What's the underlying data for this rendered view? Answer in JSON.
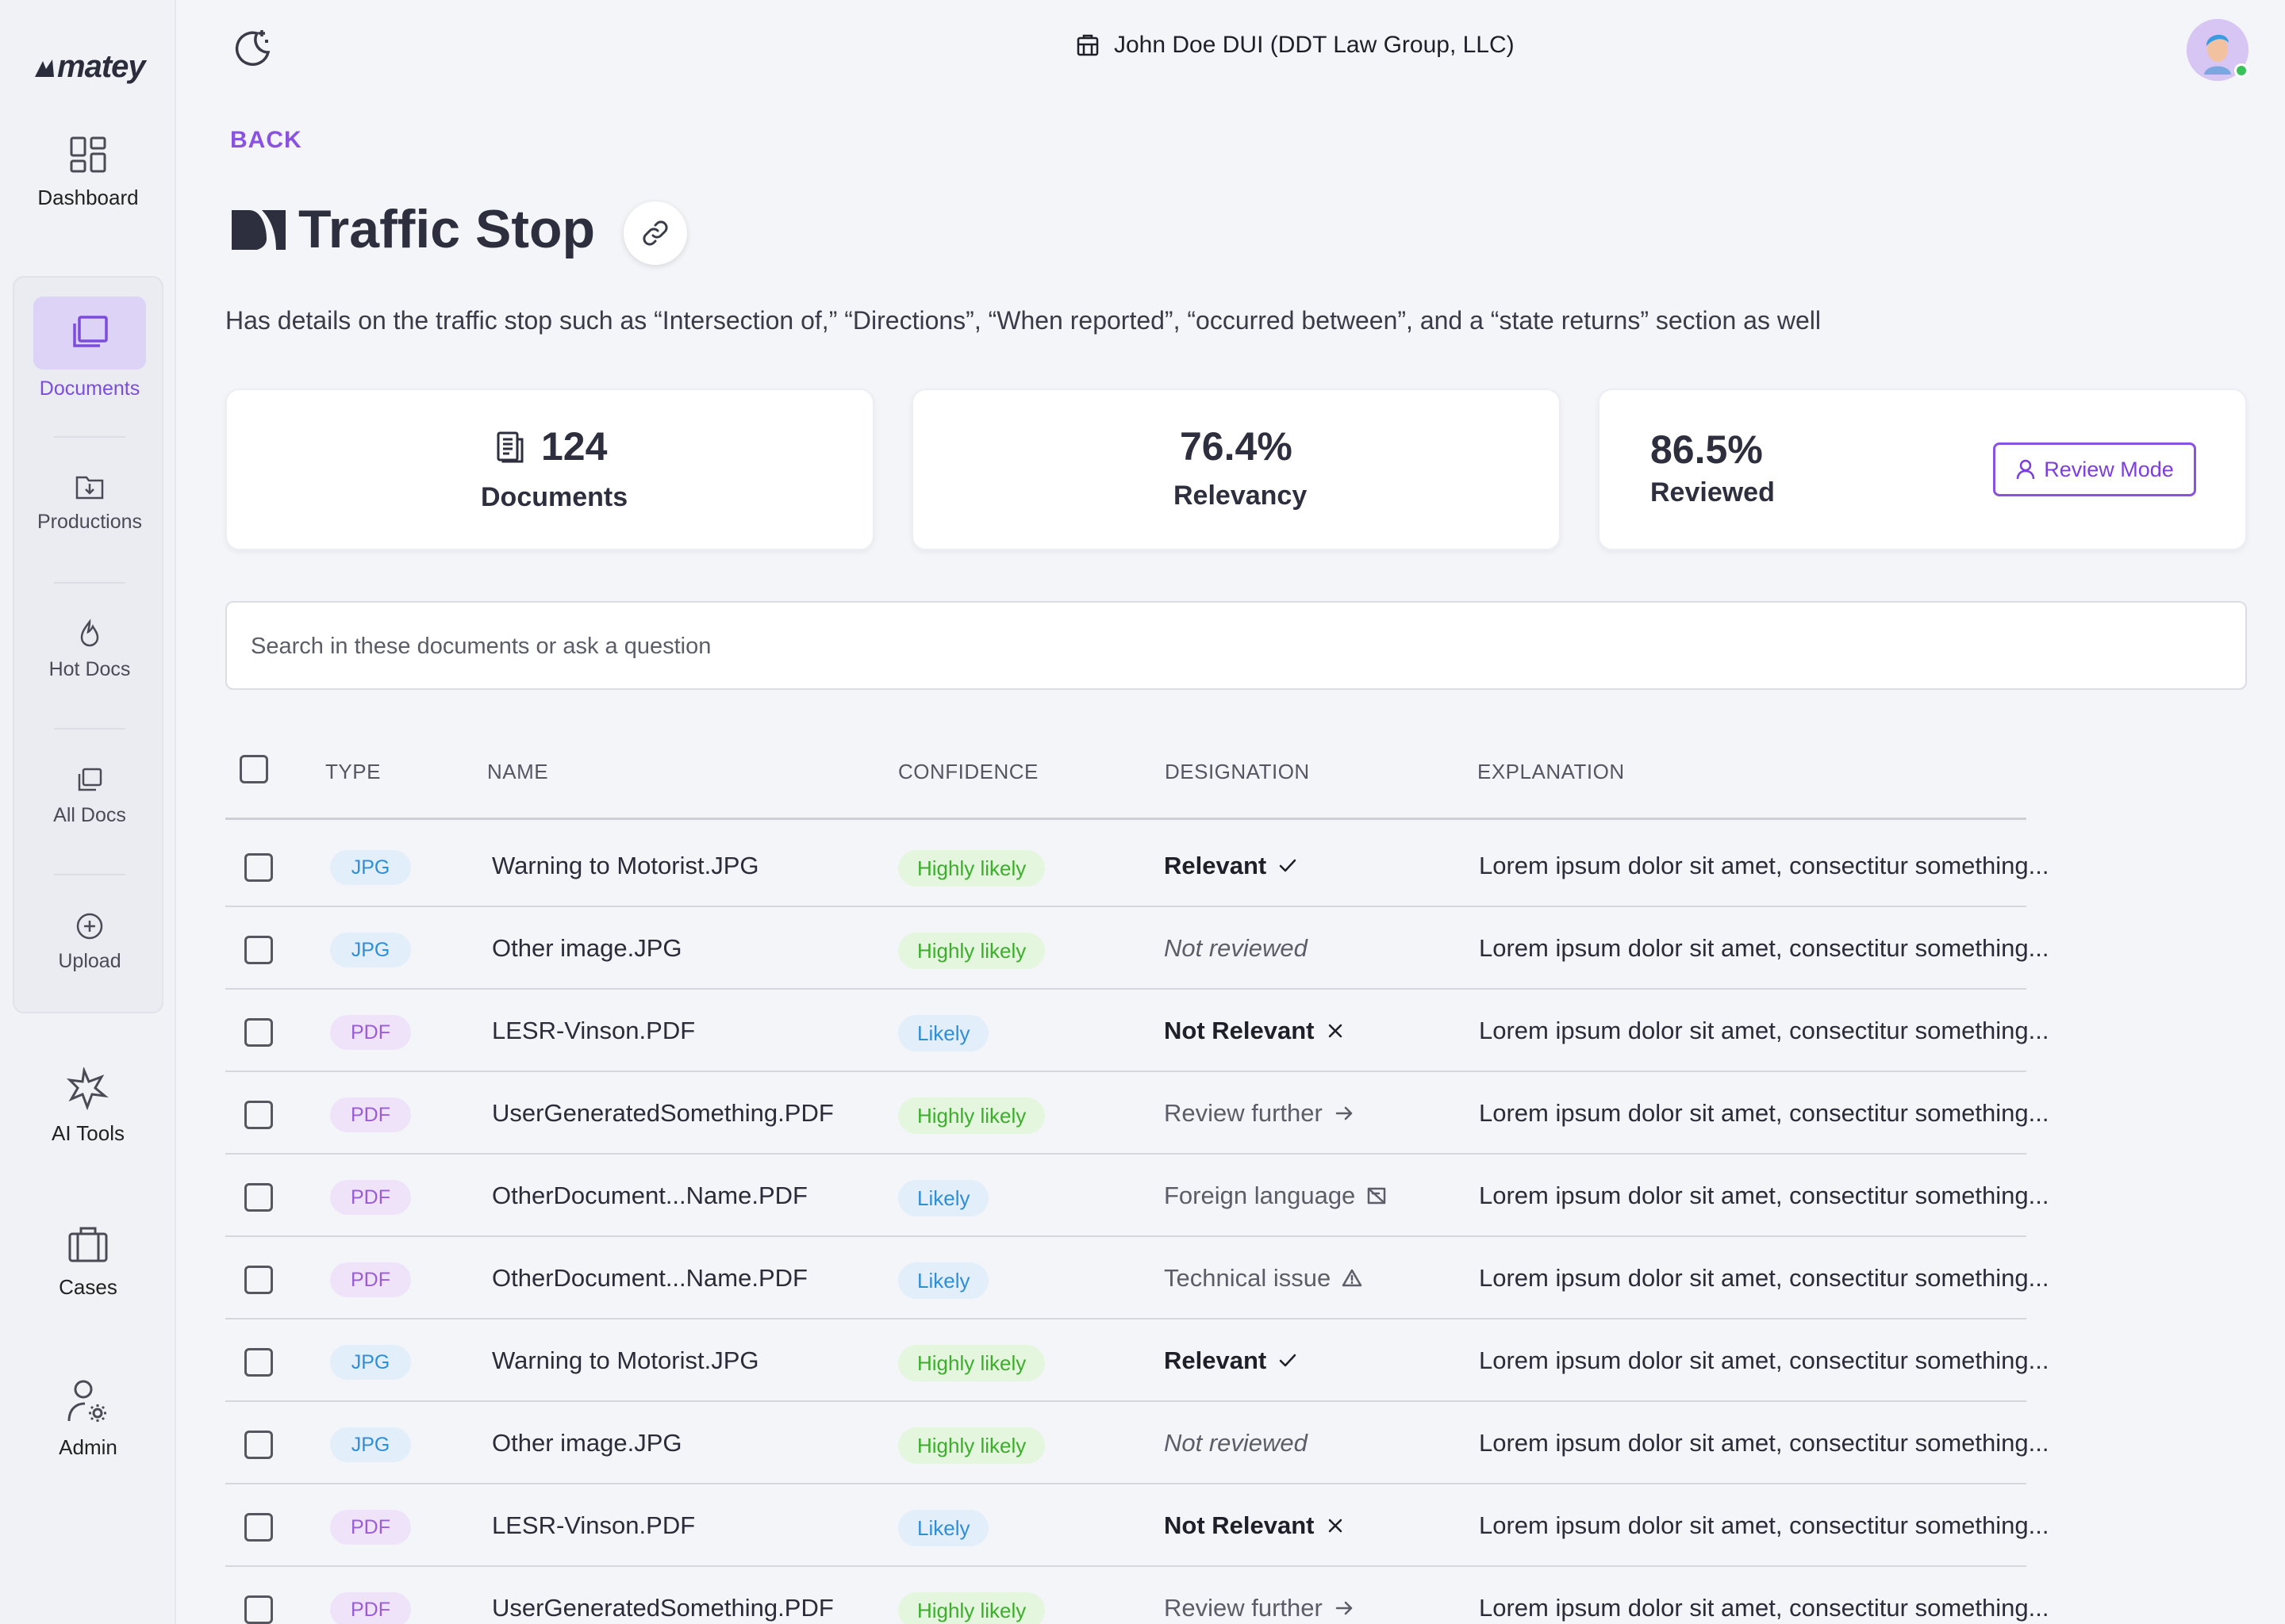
{
  "app": {
    "logo_text": "matey"
  },
  "sidebar": {
    "items": [
      {
        "label": "Dashboard",
        "icon": "dashboard-icon"
      },
      {
        "label": "Documents",
        "icon": "documents-icon"
      },
      {
        "label": "Productions",
        "icon": "productions-icon"
      },
      {
        "label": "Hot Docs",
        "icon": "flame-icon"
      },
      {
        "label": "All Docs",
        "icon": "all-docs-icon"
      },
      {
        "label": "Upload",
        "icon": "upload-icon"
      },
      {
        "label": "AI Tools",
        "icon": "ai-tools-icon"
      },
      {
        "label": "Cases",
        "icon": "briefcase-icon"
      },
      {
        "label": "Admin",
        "icon": "admin-icon"
      }
    ]
  },
  "header": {
    "case_title": "John Doe DUI (DDT Law Group, LLC)"
  },
  "page": {
    "back_label": "BACK",
    "title": "Traffic Stop",
    "description": "Has details on the traffic stop such as “Intersection of,” “Directions”, “When reported”, “occurred between”, and a “state returns” section as well"
  },
  "stats": {
    "documents": {
      "value": "124",
      "label": "Documents"
    },
    "relevancy": {
      "value": "76.4%",
      "label": "Relevancy"
    },
    "reviewed": {
      "value": "86.5%",
      "label": "Reviewed"
    },
    "review_mode_label": "Review Mode"
  },
  "search": {
    "placeholder": "Search in these documents or ask a question"
  },
  "table": {
    "columns": [
      "TYPE",
      "NAME",
      "CONFIDENCE",
      "DESIGNATION",
      "EXPLANATION"
    ],
    "rows": [
      {
        "type": "JPG",
        "name": "Warning to Motorist.JPG",
        "confidence": "Highly likely",
        "designation": "Relevant",
        "designation_kind": "relevant",
        "explanation": "Lorem ipsum dolor sit amet, consectitur something..."
      },
      {
        "type": "JPG",
        "name": "Other image.JPG",
        "confidence": "Highly likely",
        "designation": "Not reviewed",
        "designation_kind": "notrev",
        "explanation": "Lorem ipsum dolor sit amet, consectitur something..."
      },
      {
        "type": "PDF",
        "name": "LESR-Vinson.PDF",
        "confidence": "Likely",
        "designation": "Not Relevant",
        "designation_kind": "notrel",
        "explanation": "Lorem ipsum dolor sit amet, consectitur something..."
      },
      {
        "type": "PDF",
        "name": "UserGeneratedSomething.PDF",
        "confidence": "Highly likely",
        "designation": "Review further",
        "designation_kind": "further",
        "explanation": "Lorem ipsum dolor sit amet, consectitur something..."
      },
      {
        "type": "PDF",
        "name": "OtherDocument...Name.PDF",
        "confidence": "Likely",
        "designation": "Foreign language",
        "designation_kind": "foreign",
        "explanation": "Lorem ipsum dolor sit amet, consectitur something..."
      },
      {
        "type": "PDF",
        "name": "OtherDocument...Name.PDF",
        "confidence": "Likely",
        "designation": "Technical issue",
        "designation_kind": "technical",
        "explanation": "Lorem ipsum dolor sit amet, consectitur something..."
      },
      {
        "type": "JPG",
        "name": "Warning to Motorist.JPG",
        "confidence": "Highly likely",
        "designation": "Relevant",
        "designation_kind": "relevant",
        "explanation": "Lorem ipsum dolor sit amet, consectitur something..."
      },
      {
        "type": "JPG",
        "name": "Other image.JPG",
        "confidence": "Highly likely",
        "designation": "Not reviewed",
        "designation_kind": "notrev",
        "explanation": "Lorem ipsum dolor sit amet, consectitur something..."
      },
      {
        "type": "PDF",
        "name": "LESR-Vinson.PDF",
        "confidence": "Likely",
        "designation": "Not Relevant",
        "designation_kind": "notrel",
        "explanation": "Lorem ipsum dolor sit amet, consectitur something..."
      },
      {
        "type": "PDF",
        "name": "UserGeneratedSomething.PDF",
        "confidence": "Highly likely",
        "designation": "Review further",
        "designation_kind": "further",
        "explanation": "Lorem ipsum dolor sit amet, consectitur something..."
      }
    ]
  },
  "colors": {
    "accent": "#8a52e0",
    "high_confidence": "#3cae2c",
    "likely_confidence": "#2e8fd6",
    "online_status": "#39c15a"
  }
}
